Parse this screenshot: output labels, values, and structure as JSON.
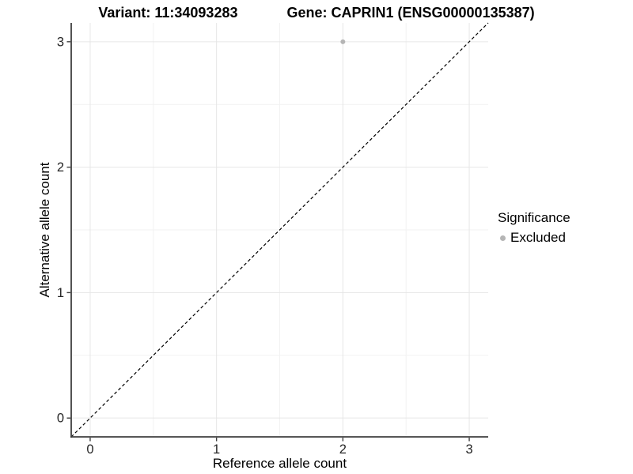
{
  "header": {
    "variant_title": "Variant: 11:34093283",
    "gene_title": "Gene: CAPRIN1 (ENSG00000135387)"
  },
  "legend": {
    "title": "Significance",
    "items": [
      {
        "label": "Excluded",
        "color": "#b5b5b5"
      }
    ]
  },
  "colors": {
    "background": "#ffffff",
    "point": "#b5b5b5",
    "grid_major": "#e6e6e6",
    "grid_minor": "#f2f2f2",
    "axis_line": "#3f3f3f",
    "dashed_line": "#000000",
    "tick_label": "#262626",
    "text": "#000000"
  },
  "chart_data": {
    "type": "scatter",
    "title": "Variant: 11:34093283  Gene: CAPRIN1 (ENSG00000135387)",
    "xlabel": "Reference allele count",
    "ylabel": "Alternative allele count",
    "xlim": [
      -0.15,
      3.15
    ],
    "ylim": [
      -0.15,
      3.15
    ],
    "x_ticks": [
      0,
      1,
      2,
      3
    ],
    "y_ticks": [
      0,
      1,
      2,
      3
    ],
    "x_minor_ticks": [
      0.5,
      1.5,
      2.5
    ],
    "y_minor_ticks": [
      0.5,
      1.5,
      2.5
    ],
    "grid": true,
    "legend_position": "right",
    "series": [
      {
        "name": "Excluded",
        "color": "#b5b5b5",
        "points": [
          {
            "x": 2,
            "y": 3
          }
        ]
      }
    ],
    "reference_line": {
      "type": "identity",
      "style": "dashed",
      "from": [
        -0.15,
        -0.15
      ],
      "to": [
        3.15,
        3.15
      ],
      "color": "#000000"
    }
  }
}
